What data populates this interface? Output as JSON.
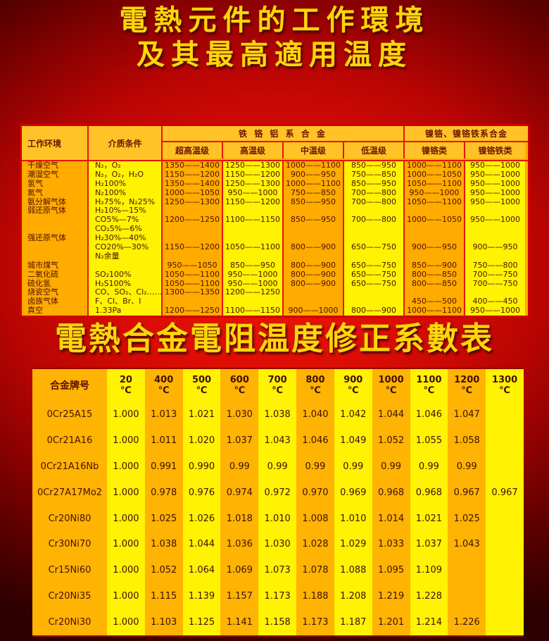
{
  "page": {
    "title_line1": "電熱元件的工作環境",
    "title_line2": "及其最高適用温度",
    "section2_title": "電熱合金電阻温度修正系數表"
  },
  "colors": {
    "background_red": "#d50a04",
    "stripe_orange": "#ffab00",
    "stripe_yellow": "#fff203",
    "header_gold": "#ffc327",
    "grid_red": "#e81505",
    "title_gold": "#ffd60a",
    "table_text": "#4f1000"
  },
  "env_table": {
    "headers": {
      "col_env": "工作环境",
      "col_medium": "介质条件",
      "group_fecral": "铁 铬 铝 系 合 金",
      "group_nicr": "镍铬、镍铬铁系合金",
      "sub": [
        "超高温级",
        "高温级",
        "中温级",
        "低温级",
        "镍铬类",
        "镍铬铁类"
      ]
    },
    "lines": [
      [
        "干燥空气",
        "N₂，O₂",
        "1350——1400",
        "1250——1300",
        "1000——1100",
        "850——950",
        "1000——1100",
        "950——1000"
      ],
      [
        "潮湿空气",
        "N₂，O₂，H₂O",
        "1150——1200",
        "1150——1200",
        "900——950",
        "750——850",
        "1000——1050",
        "950——1000"
      ],
      [
        "氢气",
        "H₂100%",
        "1350——1400",
        "1250——1300",
        "1000——1100",
        "850——950",
        "1050——1100",
        "950——1000"
      ],
      [
        "氮气",
        "N₂100%",
        "1000——1050",
        "950——1000",
        "750——850",
        "700——800",
        "950——1000",
        "950——1000"
      ],
      [
        "氨分解气体",
        "H₂75%，N₂25%",
        "1250——1300",
        "1150——1200",
        "850——950",
        "700——800",
        "1050——1100",
        "950——1000"
      ],
      [
        "弱还原气体",
        "H₂10%—15%",
        "",
        "",
        "",
        "",
        "",
        ""
      ],
      [
        "",
        "CO5%—7%",
        "1200——1250",
        "1100——1150",
        "850——950",
        "700——800",
        "1000——1050",
        "950——1000"
      ],
      [
        "",
        "CO₂5%—6%",
        "",
        "",
        "",
        "",
        "",
        ""
      ],
      [
        "强还原气体",
        "H₂30%—40%",
        "",
        "",
        "",
        "",
        "",
        ""
      ],
      [
        "",
        "CO20%—30%",
        "1150——1200",
        "1050——1100",
        "800——900",
        "650——750",
        "900——950",
        "900——950"
      ],
      [
        "",
        "N₂余量",
        "",
        "",
        "",
        "",
        "",
        ""
      ],
      [
        "城市煤气",
        "",
        "950——1050",
        "850——950",
        "800——900",
        "650——750",
        "850——900",
        "750——800"
      ],
      [
        "二氧化硫",
        "SO₂100%",
        "1050——1100",
        "950——1000",
        "800——900",
        "650——750",
        "800——850",
        "700——750"
      ],
      [
        "硫化氢",
        "H₂S100%",
        "1050——1100",
        "950——1000",
        "800——900",
        "650——750",
        "800——850",
        "700——750"
      ],
      [
        "烧瓷空气",
        "CO、SO₂、Cl₂……",
        "1300——1350",
        "1200——1250",
        "",
        "",
        "",
        ""
      ],
      [
        "卤族气体",
        "F、Cl、Br、I",
        "",
        "",
        "",
        "",
        "450——500",
        "400——450"
      ],
      [
        "真空",
        "1.33Pa",
        "1200——1250",
        "1100——1150",
        "900——1000",
        "800——900",
        "1000——1100",
        "950——1000"
      ]
    ]
  },
  "coef_table": {
    "header_first": "合金牌号",
    "deg": "℃",
    "temps": [
      "20",
      "400",
      "500",
      "600",
      "700",
      "800",
      "900",
      "1000",
      "1100",
      "1200",
      "1300"
    ],
    "rows": [
      {
        "alloy": "0Cr25A15",
        "values": [
          "1.000",
          "1.013",
          "1.021",
          "1.030",
          "1.038",
          "1.040",
          "1.042",
          "1.044",
          "1.046",
          "1.047",
          ""
        ]
      },
      {
        "alloy": "0Cr21A16",
        "values": [
          "1.000",
          "1.011",
          "1.020",
          "1.037",
          "1.043",
          "1.046",
          "1.049",
          "1.052",
          "1.055",
          "1.058",
          ""
        ]
      },
      {
        "alloy": "0Cr21A16Nb",
        "values": [
          "1.000",
          "0.991",
          "0.990",
          "0.99",
          "0.99",
          "0.99",
          "0.99",
          "0.99",
          "0.99",
          "0.99",
          ""
        ]
      },
      {
        "alloy": "0Cr27A17Mo2",
        "values": [
          "1.000",
          "0.978",
          "0.976",
          "0.974",
          "0.972",
          "0.970",
          "0.969",
          "0.968",
          "0.968",
          "0.967",
          "0.967"
        ]
      },
      {
        "alloy": "Cr20Ni80",
        "values": [
          "1.000",
          "1.025",
          "1.026",
          "1.018",
          "1.010",
          "1.008",
          "1.010",
          "1.014",
          "1.021",
          "1.025",
          ""
        ]
      },
      {
        "alloy": "Cr30Ni70",
        "values": [
          "1.000",
          "1.038",
          "1.044",
          "1.036",
          "1.030",
          "1.028",
          "1.029",
          "1.033",
          "1.037",
          "1.043",
          ""
        ]
      },
      {
        "alloy": "Cr15Ni60",
        "values": [
          "1.000",
          "1.052",
          "1.064",
          "1.069",
          "1.073",
          "1.078",
          "1.088",
          "1.095",
          "1.109",
          "",
          ""
        ]
      },
      {
        "alloy": "Cr20Ni35",
        "values": [
          "1.000",
          "1.115",
          "1.139",
          "1.157",
          "1.173",
          "1.188",
          "1.208",
          "1.219",
          "1.228",
          "",
          ""
        ]
      },
      {
        "alloy": "Cr20Ni30",
        "values": [
          "1.000",
          "1.103",
          "1.125",
          "1.141",
          "1.158",
          "1.173",
          "1.187",
          "1.201",
          "1.214",
          "1.226",
          ""
        ]
      }
    ]
  }
}
